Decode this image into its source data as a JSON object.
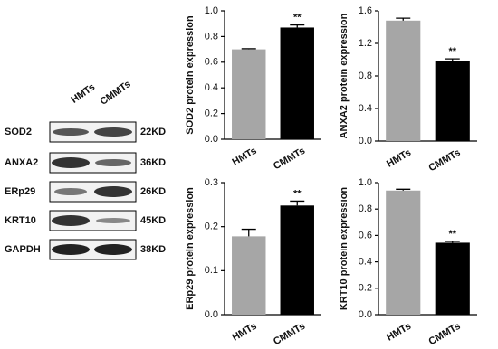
{
  "blot": {
    "lanes": [
      "HMTs",
      "CMMTs"
    ],
    "rows": [
      {
        "protein": "SOD2",
        "size": "22KD"
      },
      {
        "protein": "ANXA2",
        "size": "36KD"
      },
      {
        "protein": "ERp29",
        "size": "26KD"
      },
      {
        "protein": "KRT10",
        "size": "45KD"
      },
      {
        "protein": "GAPDH",
        "size": "38KD"
      }
    ]
  },
  "chart_data": [
    {
      "type": "bar",
      "y_label": "SOD2 protein expression",
      "categories": [
        "HMTs",
        "CMMTs"
      ],
      "values": [
        0.7,
        0.87
      ],
      "errors": [
        0.005,
        0.02
      ],
      "colors": [
        "#a6a6a6",
        "#000000"
      ],
      "annotation": "**",
      "ylim": [
        0,
        1
      ],
      "yticks": [
        {
          "value": 0,
          "label": "0.0"
        },
        0.2,
        0.4,
        0.6,
        0.8,
        {
          "value": 1,
          "label": "1.0"
        }
      ]
    },
    {
      "type": "bar",
      "y_label": "ANXA2 protein expression",
      "categories": [
        "HMTs",
        "CMMTs"
      ],
      "values": [
        1.48,
        0.98
      ],
      "errors": [
        0.03,
        0.03
      ],
      "colors": [
        "#a6a6a6",
        "#000000"
      ],
      "annotation": "**",
      "ylim": [
        0,
        1.6
      ],
      "yticks": [
        {
          "value": 0,
          "label": "0.0"
        },
        0.4,
        0.8,
        1.2,
        1.6
      ]
    },
    {
      "type": "bar",
      "y_label": "ERp29 protein expression",
      "categories": [
        "HMTs",
        "CMMTs"
      ],
      "values": [
        0.178,
        0.248
      ],
      "errors": [
        0.016,
        0.01
      ],
      "colors": [
        "#a6a6a6",
        "#000000"
      ],
      "annotation": "**",
      "ylim": [
        0,
        0.3
      ],
      "yticks": [
        {
          "value": 0,
          "label": "0.0"
        },
        0.1,
        0.2,
        0.3
      ]
    },
    {
      "type": "bar",
      "y_label": "KRT10 protein expression",
      "categories": [
        "HMTs",
        "CMMTs"
      ],
      "values": [
        0.94,
        0.545
      ],
      "errors": [
        0.01,
        0.01
      ],
      "colors": [
        "#a6a6a6",
        "#000000"
      ],
      "annotation": "**",
      "ylim": [
        0,
        1
      ],
      "yticks": [
        {
          "value": 0,
          "label": "0.0"
        },
        0.2,
        0.4,
        0.6,
        0.8,
        {
          "value": 1,
          "label": "1.0"
        }
      ]
    }
  ]
}
